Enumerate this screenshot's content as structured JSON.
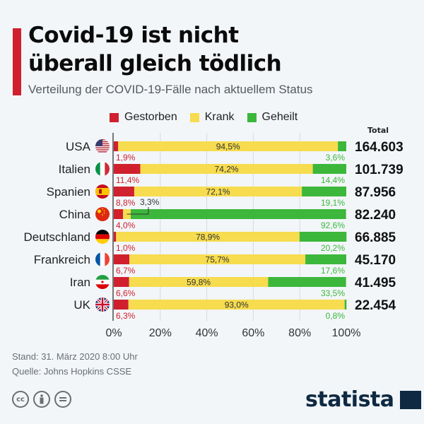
{
  "header": {
    "title_line1": "Covid-19 ist nicht",
    "title_line2": "überall gleich tödlich",
    "subtitle": "Verteilung der COVID-19-Fälle nach aktuellem Status"
  },
  "footer": {
    "date": "Stand: 31. März 2020 8:00 Uhr",
    "source": "Quelle: Johns Hopkins CSSE",
    "cc_icons": [
      "cc-icon",
      "by-icon",
      "nd-icon"
    ],
    "logo": "statista"
  },
  "colors": {
    "gestorben": "#d0202e",
    "krank": "#f6dc4e",
    "geheilt": "#3cb73c",
    "accent": "#d0202e",
    "logo": "#0f2942"
  },
  "chart_data": {
    "type": "bar",
    "orientation": "horizontal-stacked-100",
    "title": "Covid-19 ist nicht überall gleich tödlich",
    "subtitle": "Verteilung der COVID-19-Fälle nach aktuellem Status",
    "legend": [
      "Gestorben",
      "Krank",
      "Geheilt"
    ],
    "legend_position": "top",
    "total_header": "Total",
    "categories": [
      "USA",
      "Italien",
      "Spanien",
      "China",
      "Deutschland",
      "Frankreich",
      "Iran",
      "UK"
    ],
    "flags": [
      "flag-usa-icon",
      "flag-italy-icon",
      "flag-spain-icon",
      "flag-china-icon",
      "flag-germany-icon",
      "flag-france-icon",
      "flag-iran-icon",
      "flag-uk-icon"
    ],
    "series": [
      {
        "name": "Gestorben",
        "values": [
          1.9,
          11.4,
          8.8,
          4.0,
          1.0,
          6.7,
          6.6,
          6.3
        ],
        "labels": [
          "1,9%",
          "11,4%",
          "8,8%",
          "4,0%",
          "1,0%",
          "6,7%",
          "6,6%",
          "6,3%"
        ]
      },
      {
        "name": "Krank",
        "values": [
          94.5,
          74.2,
          72.1,
          3.3,
          78.9,
          75.7,
          59.8,
          93.0
        ],
        "labels": [
          "94,5%",
          "74,2%",
          "72,1%",
          "3,3%",
          "78,9%",
          "75,7%",
          "59,8%",
          "93,0%"
        ]
      },
      {
        "name": "Geheilt",
        "values": [
          3.6,
          14.4,
          19.1,
          92.6,
          20.2,
          17.6,
          33.5,
          0.8
        ],
        "labels": [
          "3,6%",
          "14,4%",
          "19,1%",
          "92,6%",
          "20,2%",
          "17,6%",
          "33,5%",
          "0,8%"
        ]
      }
    ],
    "totals": [
      "164.603",
      "101.739",
      "87.956",
      "82.240",
      "66.885",
      "45.170",
      "41.495",
      "22.454"
    ],
    "xticks": [
      "0%",
      "20%",
      "40%",
      "60%",
      "80%",
      "100%"
    ],
    "xlim": [
      0,
      100
    ],
    "grid": true,
    "xlabel": "",
    "ylabel": ""
  }
}
